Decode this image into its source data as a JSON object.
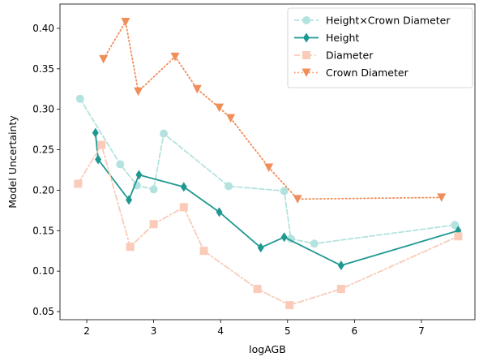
{
  "chart_data": {
    "type": "line",
    "xlabel": "logAGB",
    "ylabel": "Model Uncertainty",
    "xlim": [
      1.6,
      7.8
    ],
    "ylim": [
      0.04,
      0.43
    ],
    "xticks": [
      2,
      3,
      4,
      5,
      6,
      7
    ],
    "yticks": [
      0.05,
      0.1,
      0.15,
      0.2,
      0.25,
      0.3,
      0.35,
      0.4
    ],
    "xtick_labels": [
      "2",
      "3",
      "4",
      "5",
      "6",
      "7"
    ],
    "ytick_labels": [
      "0.05",
      "0.10",
      "0.15",
      "0.20",
      "0.25",
      "0.30",
      "0.35",
      "0.40"
    ],
    "grid": false,
    "legend_position": "top-right",
    "series": [
      {
        "name": "Height×Crown Diameter",
        "color": "#b3e3df",
        "linestyle": "dashed",
        "marker": "circle",
        "x": [
          1.9,
          2.5,
          2.75,
          3.0,
          3.15,
          4.12,
          4.95,
          5.05,
          5.4,
          7.5
        ],
        "y": [
          0.313,
          0.232,
          0.206,
          0.201,
          0.27,
          0.205,
          0.199,
          0.14,
          0.134,
          0.157
        ]
      },
      {
        "name": "Height",
        "color": "#1f9891",
        "linestyle": "solid",
        "marker": "diamond",
        "x": [
          2.13,
          2.17,
          2.63,
          2.78,
          3.45,
          3.98,
          4.6,
          4.95,
          5.8,
          7.55
        ],
        "y": [
          0.271,
          0.238,
          0.188,
          0.219,
          0.204,
          0.173,
          0.129,
          0.142,
          0.107,
          0.15
        ]
      },
      {
        "name": "Diameter",
        "color": "#f9cbb8",
        "linestyle": "dashdot",
        "marker": "square",
        "x": [
          1.87,
          2.22,
          2.65,
          3.0,
          3.45,
          3.75,
          4.55,
          5.03,
          5.8,
          7.55
        ],
        "y": [
          0.208,
          0.256,
          0.13,
          0.158,
          0.179,
          0.125,
          0.078,
          0.058,
          0.078,
          0.143
        ]
      },
      {
        "name": "Crown Diameter",
        "color": "#f08e5a",
        "linestyle": "dotted",
        "marker": "triangle-down",
        "x": [
          2.25,
          2.58,
          2.77,
          3.32,
          3.65,
          3.98,
          4.15,
          4.72,
          5.15,
          7.3
        ],
        "y": [
          0.362,
          0.408,
          0.322,
          0.365,
          0.325,
          0.302,
          0.289,
          0.228,
          0.189,
          0.191
        ]
      }
    ]
  }
}
